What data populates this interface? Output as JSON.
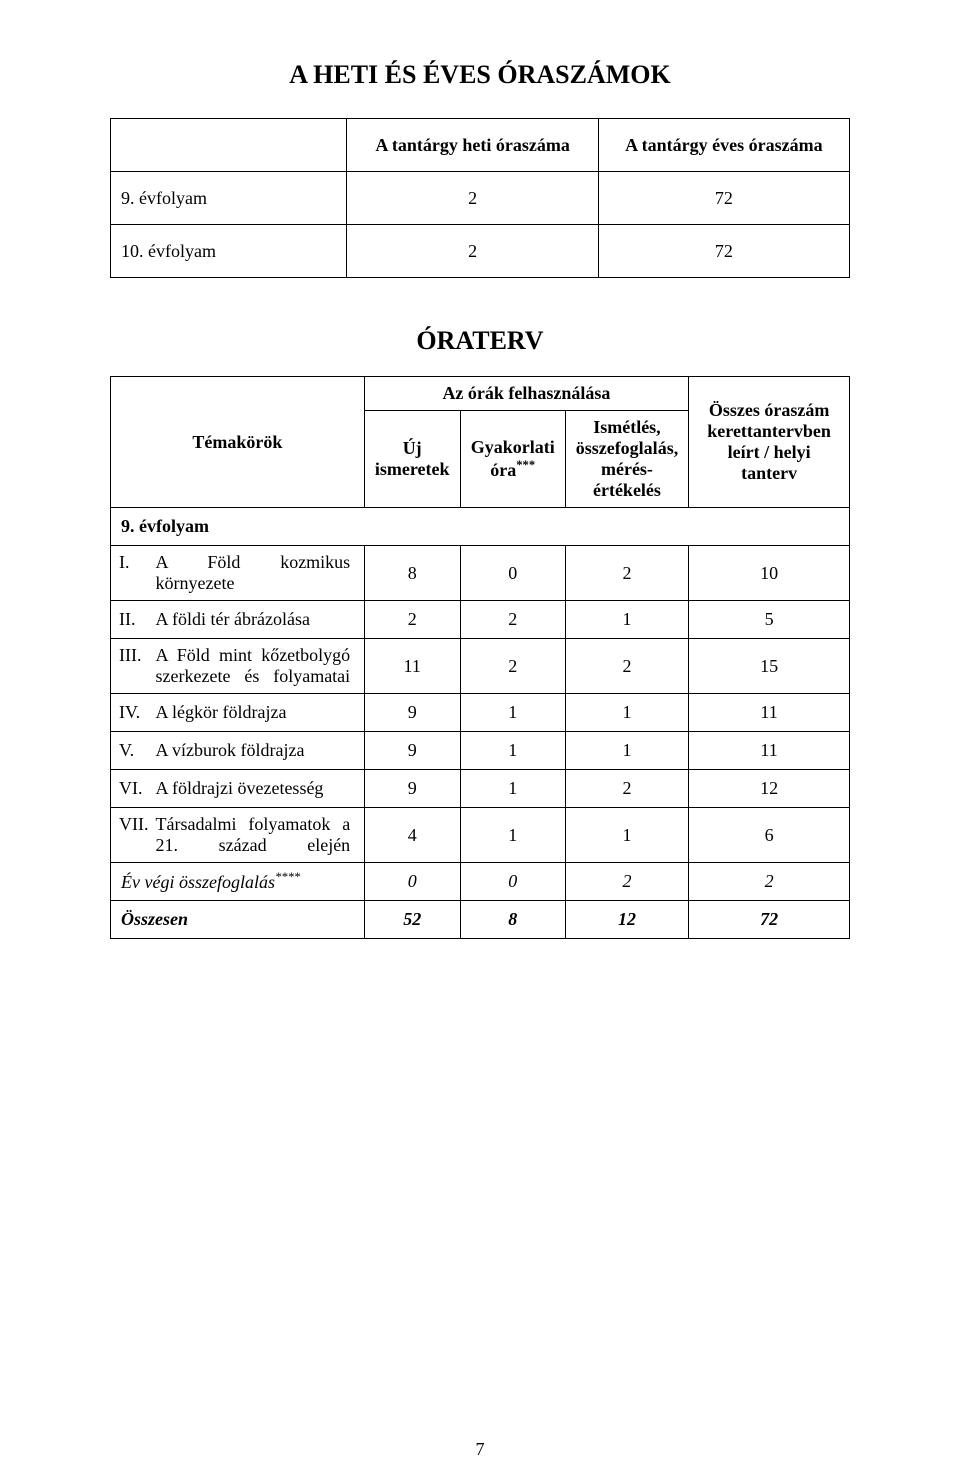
{
  "title_main": "A HETI ÉS ÉVES ÓRASZÁMOK",
  "table1": {
    "header_col2": "A tantárgy heti óraszáma",
    "header_col3": "A tantárgy éves óraszáma",
    "rows": [
      {
        "label": "9. évfolyam",
        "weekly": "2",
        "yearly": "72"
      },
      {
        "label": "10. évfolyam",
        "weekly": "2",
        "yearly": "72"
      }
    ]
  },
  "title_plan": "ÓRATERV",
  "table2": {
    "header_span": "Az órák felhasználása",
    "header_topics": "Témakörök",
    "header_new": "Új ismeretek",
    "header_practice_html": "Gyakorlati óra",
    "header_practice_sup": "***",
    "header_repeat": "Ismétlés, összefoglalás, mérés-értékelés",
    "header_total": "Összes óraszám kerettantervben leírt / helyi tanterv",
    "grade_label": "9. évfolyam",
    "rows": [
      {
        "roman": "I.",
        "topic": "A Föld kozmikus környezete",
        "c1": "8",
        "c2": "0",
        "c3": "2",
        "c4": "10",
        "tall": true,
        "justify_first": true
      },
      {
        "roman": "II.",
        "topic": "A földi tér ábrázolása",
        "c1": "2",
        "c2": "2",
        "c3": "1",
        "c4": "5",
        "tall": false,
        "justify_first": false
      },
      {
        "roman": "III.",
        "topic": "A Föld mint kőzetbolygó szerkezete és folyamatai",
        "c1": "11",
        "c2": "2",
        "c3": "2",
        "c4": "15",
        "tall": true,
        "justify_first": true
      },
      {
        "roman": "IV.",
        "topic": "A légkör földrajza",
        "c1": "9",
        "c2": "1",
        "c3": "1",
        "c4": "11",
        "tall": false,
        "justify_first": false
      },
      {
        "roman": "V.",
        "topic": "A vízburok földrajza",
        "c1": "9",
        "c2": "1",
        "c3": "1",
        "c4": "11",
        "tall": false,
        "justify_first": false
      },
      {
        "roman": "VI.",
        "topic": "A földrajzi övezetesség",
        "c1": "9",
        "c2": "1",
        "c3": "2",
        "c4": "12",
        "tall": false,
        "justify_first": false
      },
      {
        "roman": "VII.",
        "topic": "Társadalmi folyamatok a 21. század elején",
        "c1": "4",
        "c2": "1",
        "c3": "1",
        "c4": "6",
        "tall": true,
        "justify_first": true
      }
    ],
    "summary_row": {
      "label": "Év végi összefoglalás",
      "label_sup": "****",
      "c1": "0",
      "c2": "0",
      "c3": "2",
      "c4": "2"
    },
    "total_row": {
      "label": "Összesen",
      "c1": "52",
      "c2": "8",
      "c3": "12",
      "c4": "72"
    }
  },
  "page_number": "7"
}
